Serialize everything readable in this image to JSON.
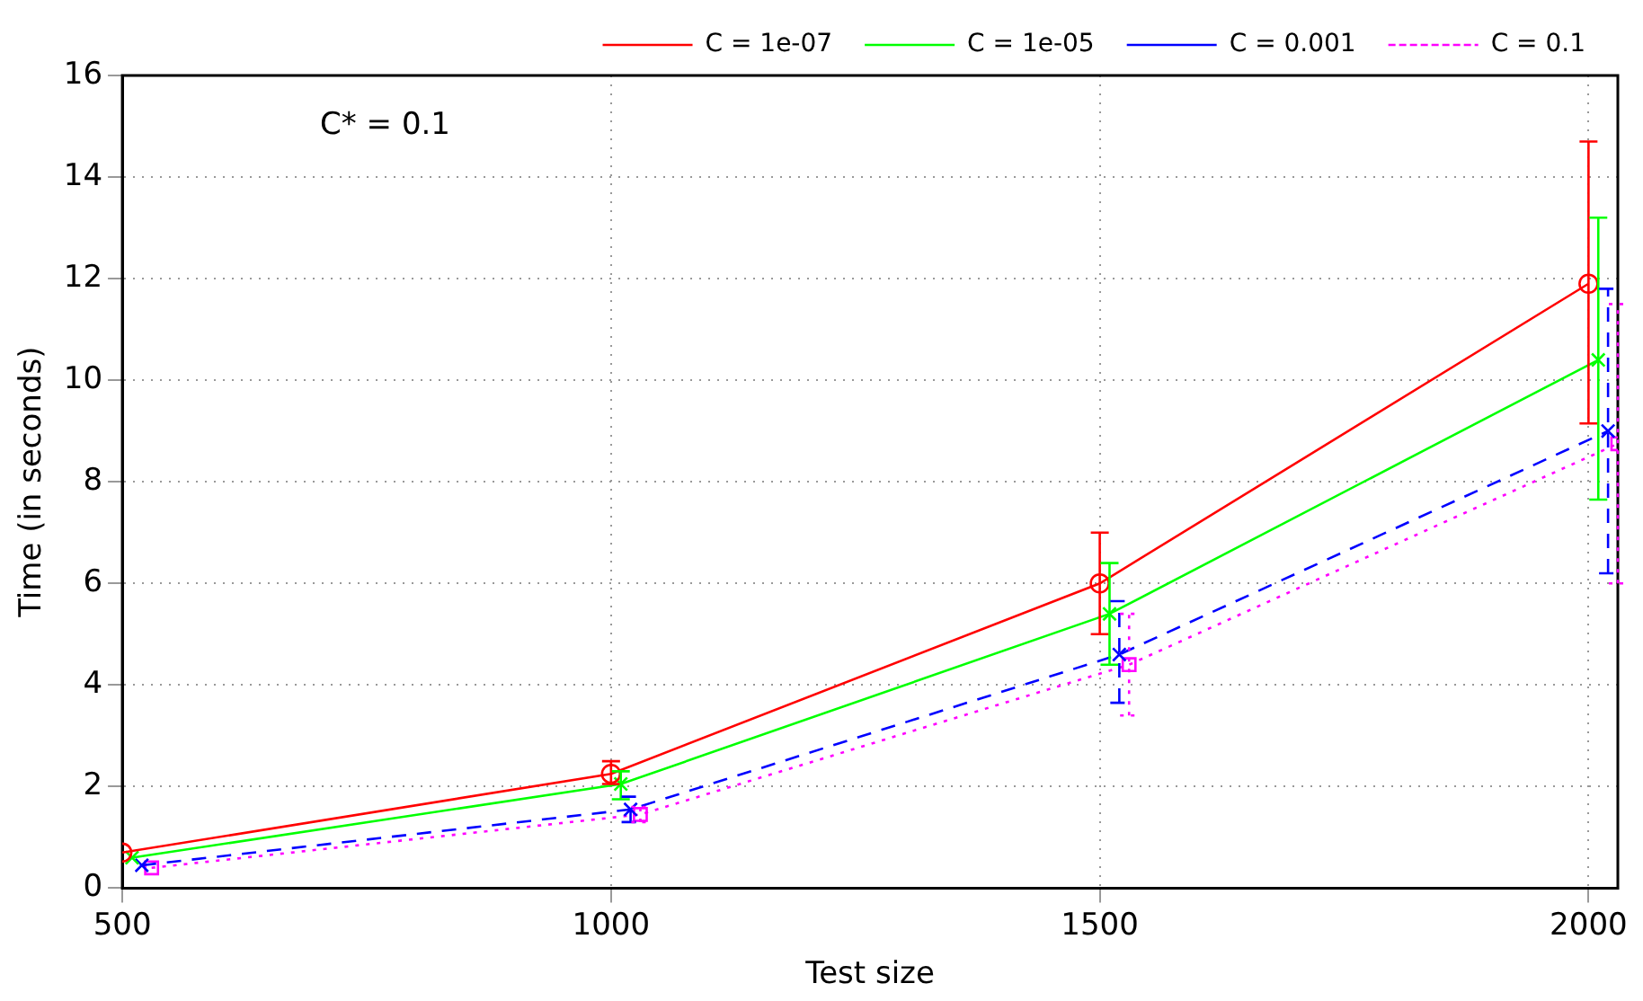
{
  "chart_data": {
    "type": "line",
    "xlabel": "Test size",
    "ylabel": "Time (in seconds)",
    "annotations": [
      "C* = 0.1"
    ],
    "xlim": [
      500,
      2030
    ],
    "xticks": [
      500,
      1000,
      1500,
      2000
    ],
    "ylim": [
      0,
      16
    ],
    "yticks": [
      0,
      2,
      4,
      6,
      8,
      10,
      12,
      14,
      16
    ],
    "grid": true,
    "legend": "top",
    "series": [
      {
        "name": "C = 1e-07",
        "color": "#ff0000",
        "marker": "circle",
        "line_style": "solid",
        "x": [
          500,
          1000,
          1500,
          2000
        ],
        "values": [
          0.7,
          2.25,
          6.0,
          11.9
        ],
        "errors": [
          null,
          [
            2.05,
            2.5
          ],
          [
            5.0,
            7.0
          ],
          [
            9.15,
            14.7
          ]
        ]
      },
      {
        "name": "C = 1e-05",
        "color": "#00ff00",
        "marker": "cross",
        "line_style": "solid",
        "x": [
          510,
          1010,
          1510,
          2010
        ],
        "values": [
          0.6,
          2.05,
          5.4,
          10.4
        ],
        "errors": [
          null,
          [
            1.75,
            2.3
          ],
          [
            4.4,
            6.4
          ],
          [
            7.65,
            13.2
          ]
        ]
      },
      {
        "name": "C = 0.001",
        "color": "#0000ff",
        "marker": "cross",
        "line_style": "dashed",
        "x": [
          520,
          1020,
          1520,
          2020
        ],
        "values": [
          0.45,
          1.55,
          4.6,
          9.0
        ],
        "errors": [
          null,
          [
            1.3,
            1.8
          ],
          [
            3.65,
            5.65
          ],
          [
            6.2,
            11.8
          ]
        ]
      },
      {
        "name": "C = 0.1",
        "color": "#ff00ff",
        "marker": "square",
        "line_style": "dotted",
        "x": [
          530,
          1030,
          1530,
          2030
        ],
        "values": [
          0.4,
          1.45,
          4.4,
          8.75
        ],
        "errors": [
          null,
          [
            1.3,
            1.6
          ],
          [
            3.4,
            5.4
          ],
          [
            6.0,
            11.5
          ]
        ]
      }
    ]
  }
}
